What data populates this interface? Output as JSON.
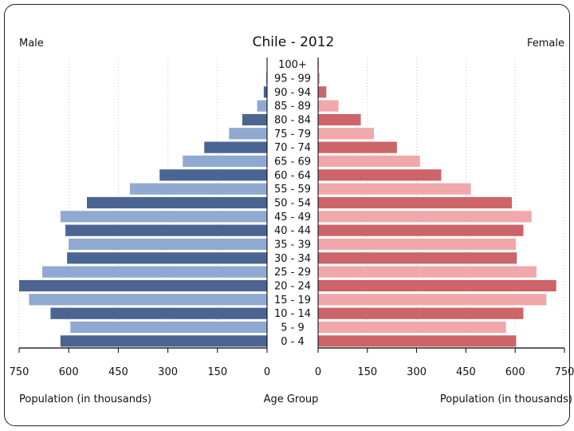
{
  "chart_data": {
    "type": "bar",
    "title": "Chile - 2012",
    "left_label": "Male",
    "right_label": "Female",
    "xlabel_left": "Population (in thousands)",
    "xlabel_center": "Age Group",
    "xlabel_right": "Population (in thousands)",
    "categories": [
      "100+",
      "95 - 99",
      "90 - 94",
      "85 - 89",
      "80 - 84",
      "75 - 79",
      "70 - 74",
      "65 - 69",
      "60 - 64",
      "55 - 59",
      "50 - 54",
      "45 - 49",
      "40 - 44",
      "35 - 39",
      "30 - 34",
      "25 - 29",
      "20 - 24",
      "15 - 19",
      "10 - 14",
      "5 - 9",
      "0 - 4"
    ],
    "series": [
      {
        "name": "Male",
        "values": [
          1,
          3,
          10,
          30,
          75,
          115,
          190,
          255,
          325,
          415,
          545,
          625,
          610,
          600,
          605,
          680,
          750,
          720,
          655,
          595,
          625
        ]
      },
      {
        "name": "Female",
        "values": [
          2,
          5,
          25,
          62,
          130,
          170,
          240,
          310,
          375,
          465,
          590,
          650,
          625,
          602,
          605,
          665,
          725,
          695,
          625,
          572,
          603
        ]
      }
    ],
    "xlim": [
      0,
      750
    ],
    "xticks": [
      "750",
      "600",
      "450",
      "300",
      "150",
      "0"
    ],
    "xticks_right": [
      "0",
      "150",
      "300",
      "450",
      "600",
      "750"
    ],
    "colors": {
      "male_dark": "#4a6591",
      "male_light": "#8fa9d1",
      "female_dark": "#cc6468",
      "female_light": "#f0a8aa"
    }
  }
}
